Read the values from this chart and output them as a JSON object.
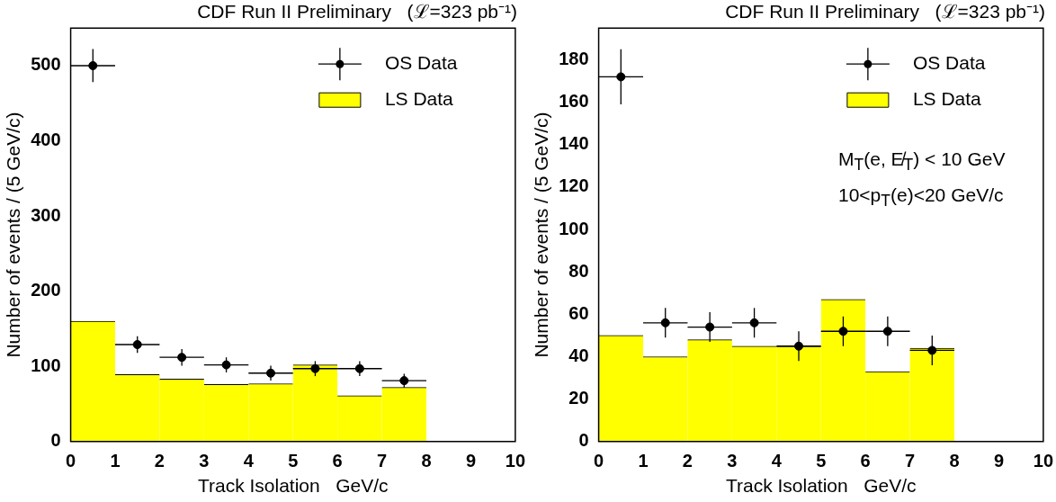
{
  "chart_data": [
    {
      "type": "histogram",
      "title": "CDF Run II Preliminary   (ℒ=323 pb⁻¹)",
      "xlabel": "Track Isolation   GeV/c",
      "ylabel": "Number of events / (5 GeV/c)",
      "bins": [
        0,
        1,
        2,
        3,
        4,
        5,
        6,
        7,
        8
      ],
      "series": [
        {
          "name": "OS Data",
          "type": "scatter",
          "color": "#000000",
          "x": [
            0.5,
            1.5,
            2.5,
            3.5,
            4.5,
            5.5,
            6.5,
            7.5
          ],
          "values": [
            500,
            129,
            112,
            102,
            91,
            97,
            97,
            81
          ],
          "errors": [
            22,
            11,
            11,
            10,
            10,
            10,
            10,
            9
          ],
          "xerrors": [
            0.5,
            0.5,
            0.5,
            0.5,
            0.5,
            0.5,
            0.5,
            0.5
          ]
        },
        {
          "name": "LS Data",
          "type": "histogram",
          "color": "#ffff00",
          "values": [
            160,
            89,
            83,
            76,
            77,
            102,
            61,
            72
          ]
        }
      ],
      "xlim": [
        0,
        10
      ],
      "xticks": [
        0,
        1,
        2,
        3,
        4,
        5,
        6,
        7,
        8,
        9,
        10
      ],
      "ylim": [
        0,
        550
      ],
      "yticks": [
        0,
        100,
        200,
        300,
        400,
        500
      ],
      "grid": false,
      "legend": "top right",
      "marker": "circle"
    },
    {
      "type": "histogram",
      "title": "CDF Run II Preliminary   (ℒ=323 pb⁻¹)",
      "xlabel": "Track Isolation   GeV/c",
      "ylabel": "Number of events / (5 GeV/c)",
      "annotations": [
        "M$_{T}$(e, E̸$_{T}$) < 10  GeV",
        "10<p$_{T}$(e)<20 GeV/c"
      ],
      "bins": [
        0,
        1,
        2,
        3,
        4,
        5,
        6,
        7,
        8
      ],
      "series": [
        {
          "name": "OS Data",
          "type": "scatter",
          "color": "#000000",
          "x": [
            0.5,
            1.5,
            2.5,
            3.5,
            4.5,
            5.5,
            6.5,
            7.5
          ],
          "values": [
            172,
            56,
            54,
            56,
            45,
            52,
            52,
            43
          ],
          "errors": [
            13,
            7,
            7,
            7,
            7,
            7,
            7,
            7
          ],
          "xerrors": [
            0.5,
            0.5,
            0.5,
            0.5,
            0.5,
            0.5,
            0.5,
            0.5
          ]
        },
        {
          "name": "LS Data",
          "type": "histogram",
          "color": "#ffff00",
          "values": [
            50,
            40,
            48,
            45,
            45,
            67,
            33,
            44
          ]
        }
      ],
      "xlim": [
        0,
        10
      ],
      "xticks": [
        0,
        1,
        2,
        3,
        4,
        5,
        6,
        7,
        8,
        9,
        10
      ],
      "ylim": [
        0,
        195
      ],
      "yticks": [
        0,
        20,
        40,
        60,
        80,
        100,
        120,
        140,
        160,
        180
      ],
      "grid": false,
      "legend": "top right",
      "marker": "circle"
    }
  ]
}
